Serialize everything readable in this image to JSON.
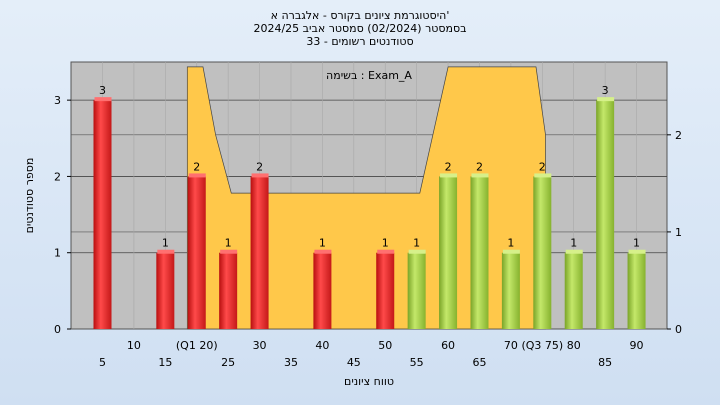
{
  "chart_data": {
    "type": "bar",
    "title_lines": [
      "היסטוגרמת ציונים בקורס - אלגברה א'",
      "בסמסטר  (02/2024)  סמסטר אביב 2024/25",
      "סטודנטים רשומים - 33"
    ],
    "annotation": "בשימה : Exam_A",
    "xlabel": "טווח ציונים",
    "ylabel": "מספר סטודנטים",
    "categories": [
      "5",
      "10",
      "15",
      "20",
      "25",
      "30",
      "35",
      "40",
      "45",
      "50",
      "55",
      "60",
      "65",
      "70",
      "75",
      "80",
      "85",
      "90"
    ],
    "series": [
      {
        "values": [
          3,
          0,
          1,
          2,
          1,
          2,
          0,
          1,
          0,
          1,
          1,
          2,
          2,
          1,
          2,
          1,
          3,
          1
        ]
      }
    ],
    "colors": [
      "#e02020",
      "#e02020",
      "#e02020",
      "#e02020",
      "#e02020",
      "#e02020",
      "#e02020",
      "#e02020",
      "#e02020",
      "#e02020",
      "#9ccc3c",
      "#9ccc3c",
      "#9ccc3c",
      "#9ccc3c",
      "#9ccc3c",
      "#9ccc3c",
      "#9ccc3c",
      "#9ccc3c"
    ],
    "bar_labels": [
      "3",
      "",
      "1",
      "2",
      "1",
      "2",
      "",
      "1",
      "",
      "1",
      "1",
      "2",
      "2",
      "1",
      "2",
      "1",
      "3",
      "1"
    ],
    "x_tick_labels": [
      {
        "value": 5,
        "text": "5",
        "row": 1
      },
      {
        "value": 10,
        "text": "10",
        "row": 0
      },
      {
        "value": 15,
        "text": "15",
        "row": 1
      },
      {
        "value": 20,
        "text": "(Q1 20)",
        "row": 0
      },
      {
        "value": 25,
        "text": "25",
        "row": 1
      },
      {
        "value": 30,
        "text": "30",
        "row": 0
      },
      {
        "value": 35,
        "text": "35",
        "row": 1
      },
      {
        "value": 40,
        "text": "40",
        "row": 0
      },
      {
        "value": 45,
        "text": "45",
        "row": 1
      },
      {
        "value": 50,
        "text": "50",
        "row": 0
      },
      {
        "value": 55,
        "text": "55",
        "row": 1
      },
      {
        "value": 60,
        "text": "60",
        "row": 0
      },
      {
        "value": 65,
        "text": "65",
        "row": 1
      },
      {
        "value": 70,
        "text": "70",
        "row": 0
      },
      {
        "value": 75,
        "text": "(Q3 75)",
        "row": 0
      },
      {
        "value": 80,
        "text": "80",
        "row": 0
      },
      {
        "value": 85,
        "text": "85",
        "row": 1
      },
      {
        "value": 90,
        "text": "90",
        "row": 0
      }
    ],
    "ylim": [
      0,
      3.5
    ],
    "yticks": [
      0,
      1,
      2,
      3
    ],
    "y2lim": [
      0,
      2.75
    ],
    "y2ticks": [
      0,
      1,
      2
    ],
    "area": {
      "color": "#ffc84a",
      "points": [
        [
          18.5,
          0
        ],
        [
          18.5,
          2.7
        ],
        [
          19.5,
          2.7
        ],
        [
          21,
          2.7
        ],
        [
          23,
          2
        ],
        [
          25.5,
          1.4
        ],
        [
          55.5,
          1.4
        ],
        [
          60,
          2.7
        ],
        [
          74,
          2.7
        ],
        [
          75.5,
          2
        ],
        [
          75.5,
          0
        ]
      ]
    },
    "grid": true,
    "plot_bg": "#c0c0c0"
  }
}
